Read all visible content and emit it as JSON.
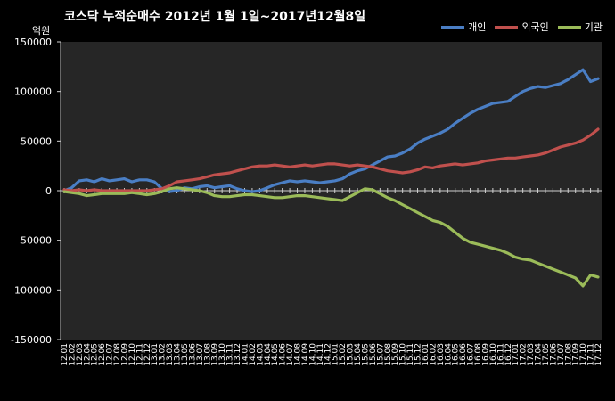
{
  "title": "코스닥 누적순매수 2012년 1월 1일~2017년12월8일",
  "unit": "억원",
  "chart_data": {
    "type": "line",
    "title": "코스닥 누적순매수 2012년 1월 1일~2017년12월8일",
    "ylabel": "억원",
    "ylim": [
      -150000,
      150000
    ],
    "yticks": [
      150000,
      100000,
      50000,
      0,
      -50000,
      -100000,
      -150000
    ],
    "ytick_labels": [
      "150000",
      "100000",
      "50000",
      "0",
      "-50000",
      "-100000",
      "-150000"
    ],
    "legend_position": "top-right",
    "grid": false,
    "x": [
      "12.01",
      "12.02",
      "12.03",
      "12.04",
      "12.05",
      "12.06",
      "12.07",
      "12.08",
      "12.09",
      "12.10",
      "12.11",
      "12.12",
      "13.01",
      "13.02",
      "13.03",
      "13.04",
      "13.05",
      "13.06",
      "13.07",
      "13.08",
      "13.09",
      "13.10",
      "13.11",
      "13.12",
      "14.01",
      "14.02",
      "14.03",
      "14.04",
      "14.05",
      "14.06",
      "14.07",
      "14.08",
      "14.09",
      "14.10",
      "14.11",
      "14.12",
      "15.01",
      "15.02",
      "15.03",
      "15.04",
      "15.05",
      "15.06",
      "15.07",
      "15.08",
      "15.09",
      "15.10",
      "15.11",
      "15.12",
      "16.01",
      "16.02",
      "16.03",
      "16.04",
      "16.05",
      "16.06",
      "16.07",
      "16.08",
      "16.09",
      "16.10",
      "16.11",
      "16.12",
      "17.01",
      "17.02",
      "17.03",
      "17.04",
      "17.05",
      "17.06",
      "17.07",
      "17.08",
      "17.09",
      "17.10",
      "17.11",
      "17.12"
    ],
    "series": [
      {
        "name": "개인",
        "color": "#4a7ec4",
        "values": [
          0,
          3000,
          10000,
          11000,
          9000,
          12000,
          10000,
          11000,
          12000,
          9000,
          11000,
          11000,
          9000,
          2000,
          -1000,
          0,
          3000,
          2000,
          4000,
          5000,
          3000,
          4000,
          5000,
          2000,
          0,
          -1000,
          0,
          3000,
          6000,
          8000,
          10000,
          9000,
          10000,
          9000,
          8000,
          9000,
          10000,
          12000,
          17000,
          20000,
          22000,
          26000,
          30000,
          34000,
          35000,
          38000,
          42000,
          48000,
          52000,
          55000,
          58000,
          62000,
          68000,
          73000,
          78000,
          82000,
          85000,
          88000,
          89000,
          90000,
          95000,
          100000,
          103000,
          105000,
          104000,
          106000,
          108000,
          112000,
          117000,
          122000,
          110000,
          113000
        ]
      },
      {
        "name": "외국인",
        "color": "#c0504d",
        "values": [
          1000,
          0,
          1000,
          0,
          1000,
          0,
          0,
          0,
          0,
          0,
          0,
          0,
          1000,
          2000,
          5000,
          9000,
          10000,
          11000,
          12000,
          14000,
          16000,
          17000,
          18000,
          20000,
          22000,
          24000,
          25000,
          25000,
          26000,
          25000,
          24000,
          25000,
          26000,
          25000,
          26000,
          27000,
          27000,
          26000,
          25000,
          26000,
          25000,
          24000,
          22000,
          20000,
          19000,
          18000,
          19000,
          21000,
          24000,
          23000,
          25000,
          26000,
          27000,
          26000,
          27000,
          28000,
          30000,
          31000,
          32000,
          33000,
          33000,
          34000,
          35000,
          36000,
          38000,
          41000,
          44000,
          46000,
          48000,
          51000,
          56000,
          62000
        ]
      },
      {
        "name": "기관",
        "color": "#9bbb59",
        "values": [
          -1000,
          -2000,
          -3000,
          -5000,
          -4000,
          -3000,
          -3000,
          -3000,
          -3000,
          -2000,
          -3000,
          -4000,
          -3000,
          -1000,
          2000,
          3000,
          2000,
          1000,
          0,
          -2000,
          -5000,
          -6000,
          -6000,
          -5000,
          -4000,
          -4000,
          -5000,
          -6000,
          -7000,
          -7000,
          -6000,
          -5000,
          -5000,
          -6000,
          -7000,
          -8000,
          -9000,
          -10000,
          -6000,
          -2000,
          2000,
          1000,
          -3000,
          -7000,
          -10000,
          -14000,
          -18000,
          -22000,
          -26000,
          -30000,
          -32000,
          -36000,
          -42000,
          -48000,
          -52000,
          -54000,
          -56000,
          -58000,
          -60000,
          -63000,
          -67000,
          -69000,
          -70000,
          -73000,
          -76000,
          -79000,
          -82000,
          -85000,
          -88000,
          -96000,
          -85000,
          -87000
        ]
      }
    ]
  }
}
